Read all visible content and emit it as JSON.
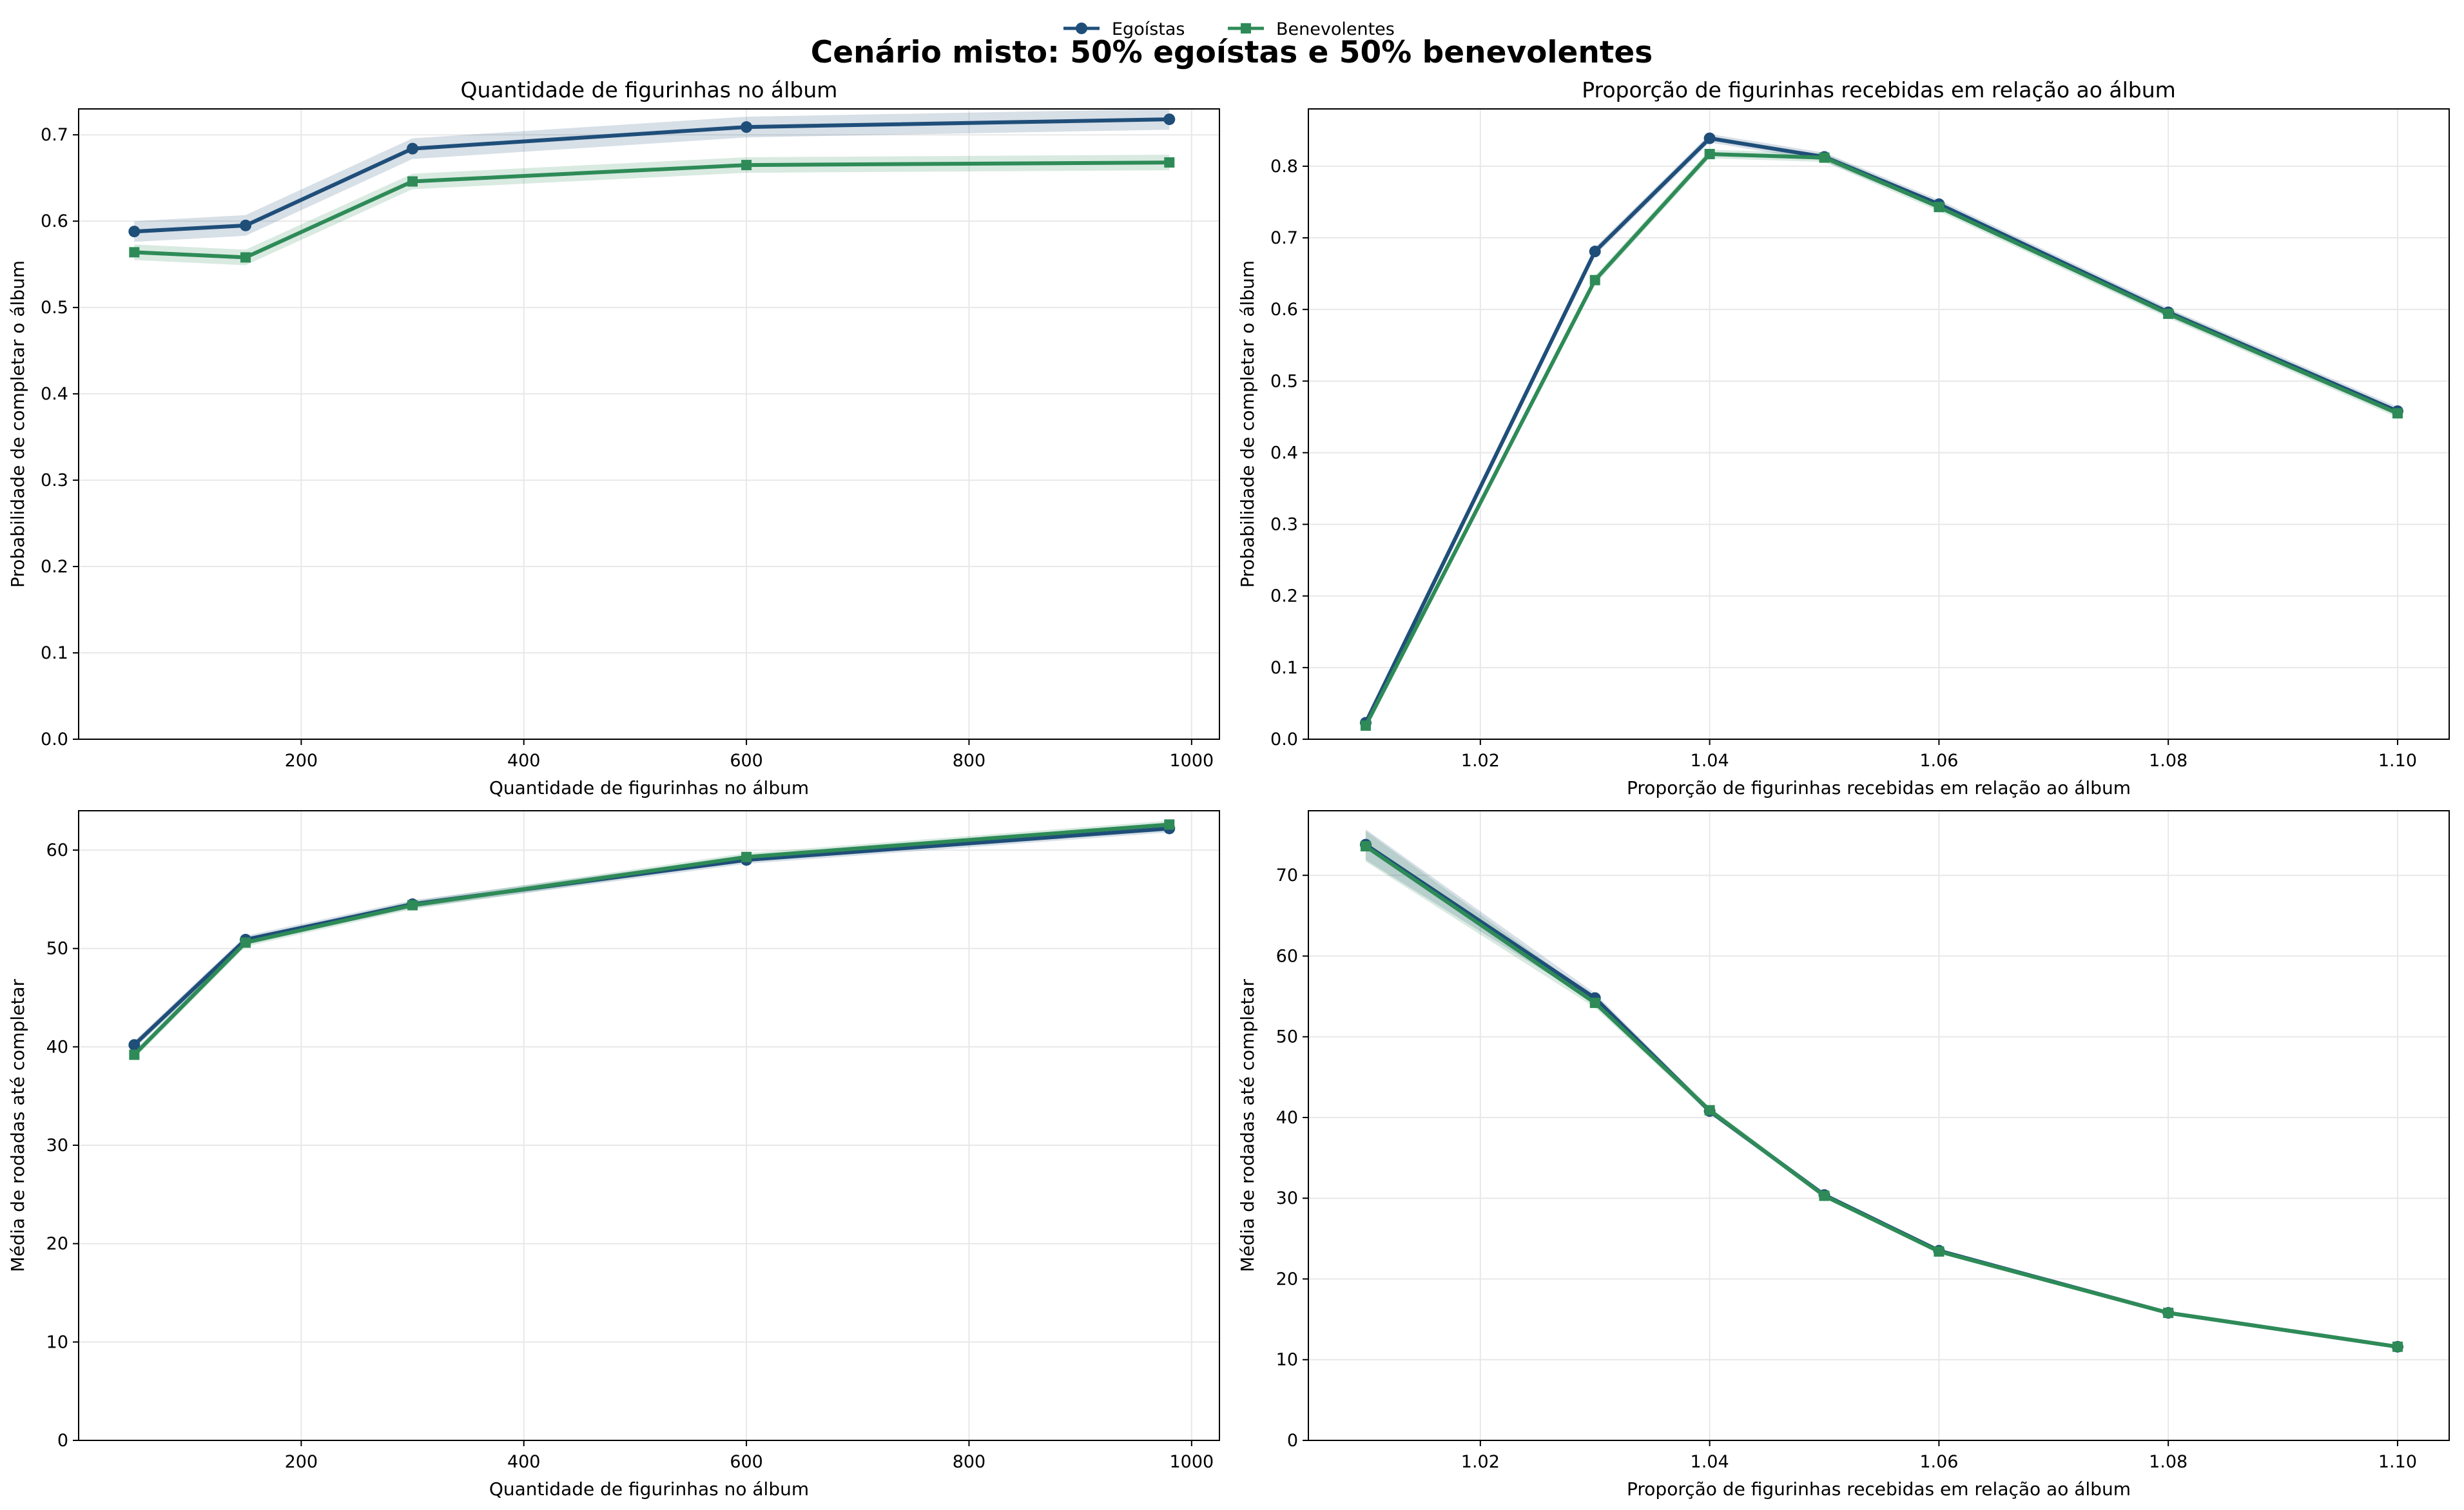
{
  "figure": {
    "title": "Cenário misto: 50% egoístas e 50% benevolentes"
  },
  "legend": {
    "position": "top-center",
    "entries": [
      {
        "name": "Egoístas",
        "color": "#1f4e79",
        "marker": "circle"
      },
      {
        "name": "Benevolentes",
        "color": "#2e8b57",
        "marker": "square"
      }
    ]
  },
  "chart_data": [
    {
      "type": "line",
      "title": "Quantidade de figurinhas no álbum",
      "xlabel": "Quantidade de figurinhas no álbum",
      "ylabel": "Probabilidade de completar o álbum",
      "xlim": [
        0,
        1025
      ],
      "ylim": [
        0,
        0.73
      ],
      "xticks": [
        200,
        400,
        600,
        800,
        1000
      ],
      "yticks": [
        0.0,
        0.1,
        0.2,
        0.3,
        0.4,
        0.5,
        0.6,
        0.7
      ],
      "ytick_labels": [
        "0.0",
        "0.1",
        "0.2",
        "0.3",
        "0.4",
        "0.5",
        "0.6",
        "0.7"
      ],
      "grid": true,
      "x": [
        50,
        150,
        300,
        600,
        980
      ],
      "series": [
        {
          "name": "Egoístas",
          "values": [
            0.588,
            0.595,
            0.684,
            0.709,
            0.718
          ],
          "band": 0.012
        },
        {
          "name": "Benevolentes",
          "values": [
            0.564,
            0.558,
            0.646,
            0.665,
            0.668
          ],
          "band": 0.009
        }
      ]
    },
    {
      "type": "line",
      "title": "Proporção de figurinhas recebidas em relação ao álbum",
      "xlabel": "Proporção de figurinhas recebidas em relação ao álbum",
      "ylabel": "Probabilidade de completar o álbum",
      "xlim": [
        1.005,
        1.1045
      ],
      "ylim": [
        0,
        0.88
      ],
      "xticks": [
        1.02,
        1.04,
        1.06,
        1.08,
        1.1
      ],
      "xtick_labels": [
        "1.02",
        "1.04",
        "1.06",
        "1.08",
        "1.10"
      ],
      "yticks": [
        0.0,
        0.1,
        0.2,
        0.3,
        0.4,
        0.5,
        0.6,
        0.7,
        0.8
      ],
      "ytick_labels": [
        "0.0",
        "0.1",
        "0.2",
        "0.3",
        "0.4",
        "0.5",
        "0.6",
        "0.7",
        "0.8"
      ],
      "grid": true,
      "x": [
        1.01,
        1.03,
        1.04,
        1.05,
        1.06,
        1.08,
        1.1
      ],
      "series": [
        {
          "name": "Egoístas",
          "values": [
            0.023,
            0.681,
            0.839,
            0.813,
            0.747,
            0.596,
            0.458
          ],
          "band": 0.006
        },
        {
          "name": "Benevolentes",
          "values": [
            0.019,
            0.641,
            0.817,
            0.812,
            0.743,
            0.594,
            0.455
          ],
          "band": 0.006
        }
      ]
    },
    {
      "type": "line",
      "xlabel": "Quantidade de figurinhas no álbum",
      "ylabel": "Média de rodadas até completar",
      "xlim": [
        0,
        1025
      ],
      "ylim": [
        0,
        64
      ],
      "xticks": [
        200,
        400,
        600,
        800,
        1000
      ],
      "yticks": [
        0,
        10,
        20,
        30,
        40,
        50,
        60
      ],
      "ytick_labels": [
        "0",
        "10",
        "20",
        "30",
        "40",
        "50",
        "60"
      ],
      "grid": true,
      "x": [
        50,
        150,
        300,
        600,
        980
      ],
      "series": [
        {
          "name": "Egoístas",
          "values": [
            40.2,
            50.9,
            54.5,
            59.0,
            62.2
          ],
          "band": 0.4
        },
        {
          "name": "Benevolentes",
          "values": [
            39.2,
            50.6,
            54.4,
            59.3,
            62.6
          ],
          "band": 0.4
        }
      ]
    },
    {
      "type": "line",
      "xlabel": "Proporção de figurinhas recebidas em relação ao álbum",
      "ylabel": "Média de rodadas até completar",
      "xlim": [
        1.005,
        1.1045
      ],
      "ylim": [
        0,
        78
      ],
      "xticks": [
        1.02,
        1.04,
        1.06,
        1.08,
        1.1
      ],
      "xtick_labels": [
        "1.02",
        "1.04",
        "1.06",
        "1.08",
        "1.10"
      ],
      "yticks": [
        0,
        10,
        20,
        30,
        40,
        50,
        60,
        70
      ],
      "ytick_labels": [
        "0",
        "10",
        "20",
        "30",
        "40",
        "50",
        "60",
        "70"
      ],
      "grid": true,
      "x": [
        1.01,
        1.03,
        1.04,
        1.05,
        1.06,
        1.08,
        1.1
      ],
      "series": [
        {
          "name": "Egoístas",
          "values": [
            73.8,
            54.8,
            40.8,
            30.4,
            23.5,
            15.8,
            11.6
          ],
          "band_values": [
            1.9,
            0.6,
            0.4,
            0.3,
            0.2,
            0.1,
            0.1
          ]
        },
        {
          "name": "Benevolentes",
          "values": [
            73.6,
            54.2,
            40.9,
            30.3,
            23.4,
            15.8,
            11.6
          ],
          "band_values": [
            1.9,
            0.6,
            0.4,
            0.3,
            0.2,
            0.1,
            0.1
          ]
        }
      ]
    }
  ]
}
